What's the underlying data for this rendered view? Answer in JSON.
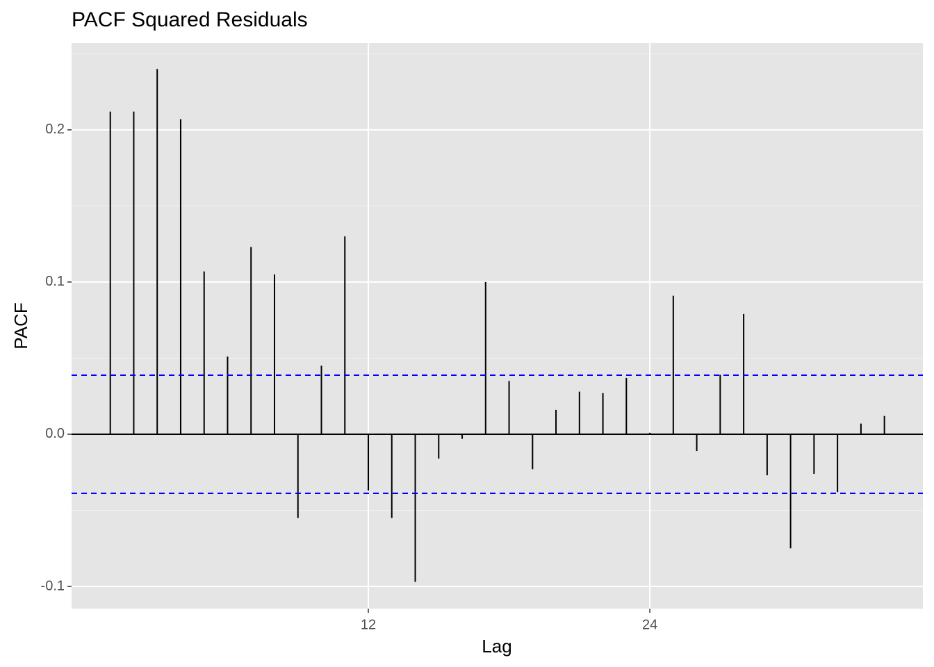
{
  "chart_data": {
    "type": "stem",
    "title": "PACF Squared Residuals",
    "x_label": "Lag",
    "y_label": "PACF",
    "x": [
      1,
      2,
      3,
      4,
      5,
      6,
      7,
      8,
      9,
      10,
      11,
      12,
      13,
      14,
      15,
      16,
      17,
      18,
      19,
      20,
      21,
      22,
      23,
      24,
      25,
      26,
      27,
      28,
      29,
      30,
      31,
      32,
      33,
      34
    ],
    "values": [
      0.212,
      0.212,
      0.24,
      0.207,
      0.107,
      0.051,
      0.123,
      0.105,
      -0.055,
      0.045,
      0.13,
      -0.037,
      -0.055,
      -0.097,
      -0.016,
      -0.003,
      0.1,
      0.035,
      -0.023,
      0.016,
      0.028,
      0.027,
      0.037,
      0.001,
      0.091,
      -0.011,
      0.039,
      0.079,
      -0.027,
      -0.075,
      -0.026,
      -0.038,
      0.007,
      0.012
    ],
    "color": "#000000",
    "conf_limits": [
      0.0388,
      -0.0388
    ],
    "conf_color": "#0000ff",
    "xlim": [
      -0.65,
      35.64
    ],
    "xticks": [
      12,
      24
    ],
    "ylim": [
      -0.1146,
      0.257
    ],
    "yticks": [
      -0.1,
      {
        "value": 0,
        "label": "0.0"
      },
      0.1,
      0.2
    ],
    "yminorticks": [
      -0.05,
      0.05,
      0.15,
      0.25
    ],
    "grid": true
  }
}
